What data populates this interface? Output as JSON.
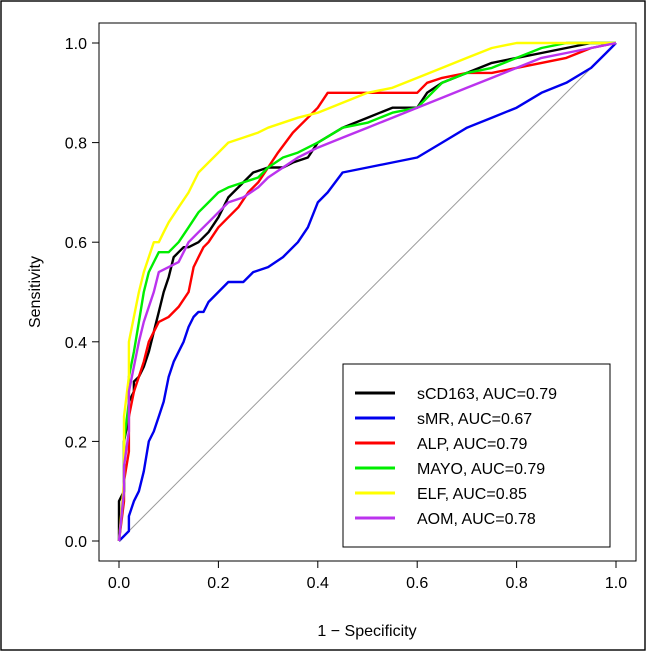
{
  "chart_data": {
    "type": "line",
    "xlabel": "1 − Specificity",
    "ylabel": "Sensitivity",
    "xlim": [
      0,
      1
    ],
    "ylim": [
      0,
      1
    ],
    "xticks": [
      "0.0",
      "0.2",
      "0.4",
      "0.6",
      "0.8",
      "1.0"
    ],
    "yticks": [
      "0.0",
      "0.2",
      "0.4",
      "0.6",
      "0.8",
      "1.0"
    ],
    "grid": false,
    "reference_line": {
      "x": [
        0,
        1
      ],
      "y": [
        0,
        1
      ],
      "color": "#a0a0a0"
    },
    "legend_position": "bottom-right",
    "series": [
      {
        "name": "sCD163, AUC=0.79",
        "color": "#000000",
        "x": [
          0,
          0,
          0.01,
          0.01,
          0.02,
          0.02,
          0.03,
          0.03,
          0.04,
          0.05,
          0.06,
          0.07,
          0.08,
          0.09,
          0.1,
          0.11,
          0.12,
          0.13,
          0.14,
          0.16,
          0.18,
          0.2,
          0.22,
          0.25,
          0.27,
          0.3,
          0.33,
          0.35,
          0.38,
          0.4,
          0.45,
          0.5,
          0.55,
          0.6,
          0.62,
          0.65,
          0.7,
          0.75,
          0.8,
          0.85,
          0.9,
          0.95,
          1.0
        ],
        "y": [
          0,
          0.08,
          0.1,
          0.2,
          0.25,
          0.28,
          0.3,
          0.32,
          0.33,
          0.35,
          0.38,
          0.42,
          0.46,
          0.5,
          0.53,
          0.57,
          0.58,
          0.59,
          0.59,
          0.6,
          0.62,
          0.65,
          0.69,
          0.72,
          0.74,
          0.75,
          0.75,
          0.76,
          0.77,
          0.8,
          0.83,
          0.85,
          0.87,
          0.87,
          0.9,
          0.92,
          0.94,
          0.96,
          0.97,
          0.98,
          0.99,
          1.0,
          1.0
        ]
      },
      {
        "name": "sMR, AUC=0.67",
        "color": "#0000ee",
        "x": [
          0,
          0.01,
          0.02,
          0.02,
          0.03,
          0.04,
          0.05,
          0.06,
          0.07,
          0.08,
          0.09,
          0.1,
          0.11,
          0.12,
          0.13,
          0.14,
          0.15,
          0.16,
          0.17,
          0.18,
          0.2,
          0.22,
          0.25,
          0.27,
          0.3,
          0.33,
          0.36,
          0.38,
          0.4,
          0.42,
          0.45,
          0.5,
          0.55,
          0.6,
          0.65,
          0.7,
          0.75,
          0.8,
          0.85,
          0.9,
          0.95,
          0.98,
          1.0
        ],
        "y": [
          0,
          0.01,
          0.02,
          0.05,
          0.08,
          0.1,
          0.14,
          0.2,
          0.22,
          0.25,
          0.28,
          0.33,
          0.36,
          0.38,
          0.4,
          0.43,
          0.45,
          0.46,
          0.46,
          0.48,
          0.5,
          0.52,
          0.52,
          0.54,
          0.55,
          0.57,
          0.6,
          0.63,
          0.68,
          0.7,
          0.74,
          0.75,
          0.76,
          0.77,
          0.8,
          0.83,
          0.85,
          0.87,
          0.9,
          0.92,
          0.95,
          0.98,
          1.0
        ]
      },
      {
        "name": "ALP, AUC=0.79",
        "color": "#ff0000",
        "x": [
          0,
          0.01,
          0.01,
          0.02,
          0.02,
          0.03,
          0.04,
          0.05,
          0.06,
          0.07,
          0.08,
          0.1,
          0.12,
          0.14,
          0.15,
          0.16,
          0.17,
          0.18,
          0.2,
          0.22,
          0.24,
          0.26,
          0.28,
          0.3,
          0.32,
          0.35,
          0.38,
          0.4,
          0.42,
          0.45,
          0.5,
          0.55,
          0.6,
          0.62,
          0.65,
          0.7,
          0.75,
          0.8,
          0.85,
          0.9,
          0.95,
          1.0
        ],
        "y": [
          0,
          0.08,
          0.12,
          0.18,
          0.25,
          0.3,
          0.33,
          0.36,
          0.4,
          0.42,
          0.44,
          0.45,
          0.47,
          0.5,
          0.55,
          0.57,
          0.59,
          0.6,
          0.63,
          0.65,
          0.67,
          0.7,
          0.72,
          0.75,
          0.78,
          0.82,
          0.85,
          0.87,
          0.9,
          0.9,
          0.9,
          0.9,
          0.9,
          0.92,
          0.93,
          0.94,
          0.94,
          0.95,
          0.96,
          0.97,
          0.99,
          1.0
        ]
      },
      {
        "name": "MAYO, AUC=0.79",
        "color": "#00ee00",
        "x": [
          0,
          0.01,
          0.01,
          0.02,
          0.02,
          0.03,
          0.04,
          0.05,
          0.06,
          0.07,
          0.08,
          0.1,
          0.12,
          0.14,
          0.16,
          0.18,
          0.2,
          0.22,
          0.25,
          0.28,
          0.3,
          0.33,
          0.36,
          0.4,
          0.45,
          0.5,
          0.55,
          0.6,
          0.63,
          0.65,
          0.7,
          0.75,
          0.8,
          0.85,
          0.9,
          0.95,
          1.0
        ],
        "y": [
          0,
          0.1,
          0.2,
          0.28,
          0.33,
          0.38,
          0.44,
          0.5,
          0.54,
          0.56,
          0.58,
          0.58,
          0.6,
          0.63,
          0.66,
          0.68,
          0.7,
          0.71,
          0.72,
          0.73,
          0.75,
          0.77,
          0.78,
          0.8,
          0.83,
          0.84,
          0.86,
          0.87,
          0.9,
          0.92,
          0.94,
          0.95,
          0.97,
          0.99,
          1.0,
          1.0,
          1.0
        ]
      },
      {
        "name": "ELF, AUC=0.85",
        "color": "#ffff00",
        "x": [
          0,
          0.01,
          0.01,
          0.02,
          0.02,
          0.03,
          0.04,
          0.05,
          0.06,
          0.07,
          0.08,
          0.09,
          0.1,
          0.12,
          0.14,
          0.16,
          0.18,
          0.2,
          0.22,
          0.25,
          0.28,
          0.3,
          0.33,
          0.36,
          0.4,
          0.45,
          0.5,
          0.55,
          0.6,
          0.65,
          0.7,
          0.75,
          0.8,
          0.85,
          0.9,
          0.95,
          1.0
        ],
        "y": [
          0,
          0.12,
          0.25,
          0.33,
          0.4,
          0.45,
          0.5,
          0.54,
          0.57,
          0.6,
          0.6,
          0.62,
          0.64,
          0.67,
          0.7,
          0.74,
          0.76,
          0.78,
          0.8,
          0.81,
          0.82,
          0.83,
          0.84,
          0.85,
          0.86,
          0.88,
          0.9,
          0.91,
          0.93,
          0.95,
          0.97,
          0.99,
          1.0,
          1.0,
          1.0,
          1.0,
          1.0
        ]
      },
      {
        "name": "AOM, AUC=0.78",
        "color": "#bb33ee",
        "x": [
          0,
          0.01,
          0.01,
          0.02,
          0.02,
          0.03,
          0.04,
          0.05,
          0.06,
          0.07,
          0.08,
          0.1,
          0.12,
          0.14,
          0.16,
          0.18,
          0.2,
          0.22,
          0.25,
          0.28,
          0.3,
          0.33,
          0.36,
          0.4,
          0.45,
          0.5,
          0.55,
          0.6,
          0.65,
          0.7,
          0.75,
          0.8,
          0.85,
          0.9,
          0.95,
          1.0
        ],
        "y": [
          0,
          0.1,
          0.15,
          0.22,
          0.3,
          0.35,
          0.4,
          0.44,
          0.47,
          0.5,
          0.54,
          0.55,
          0.56,
          0.6,
          0.62,
          0.64,
          0.66,
          0.68,
          0.69,
          0.71,
          0.73,
          0.75,
          0.77,
          0.79,
          0.81,
          0.83,
          0.85,
          0.87,
          0.89,
          0.91,
          0.93,
          0.95,
          0.97,
          0.98,
          0.99,
          1.0
        ]
      }
    ]
  }
}
